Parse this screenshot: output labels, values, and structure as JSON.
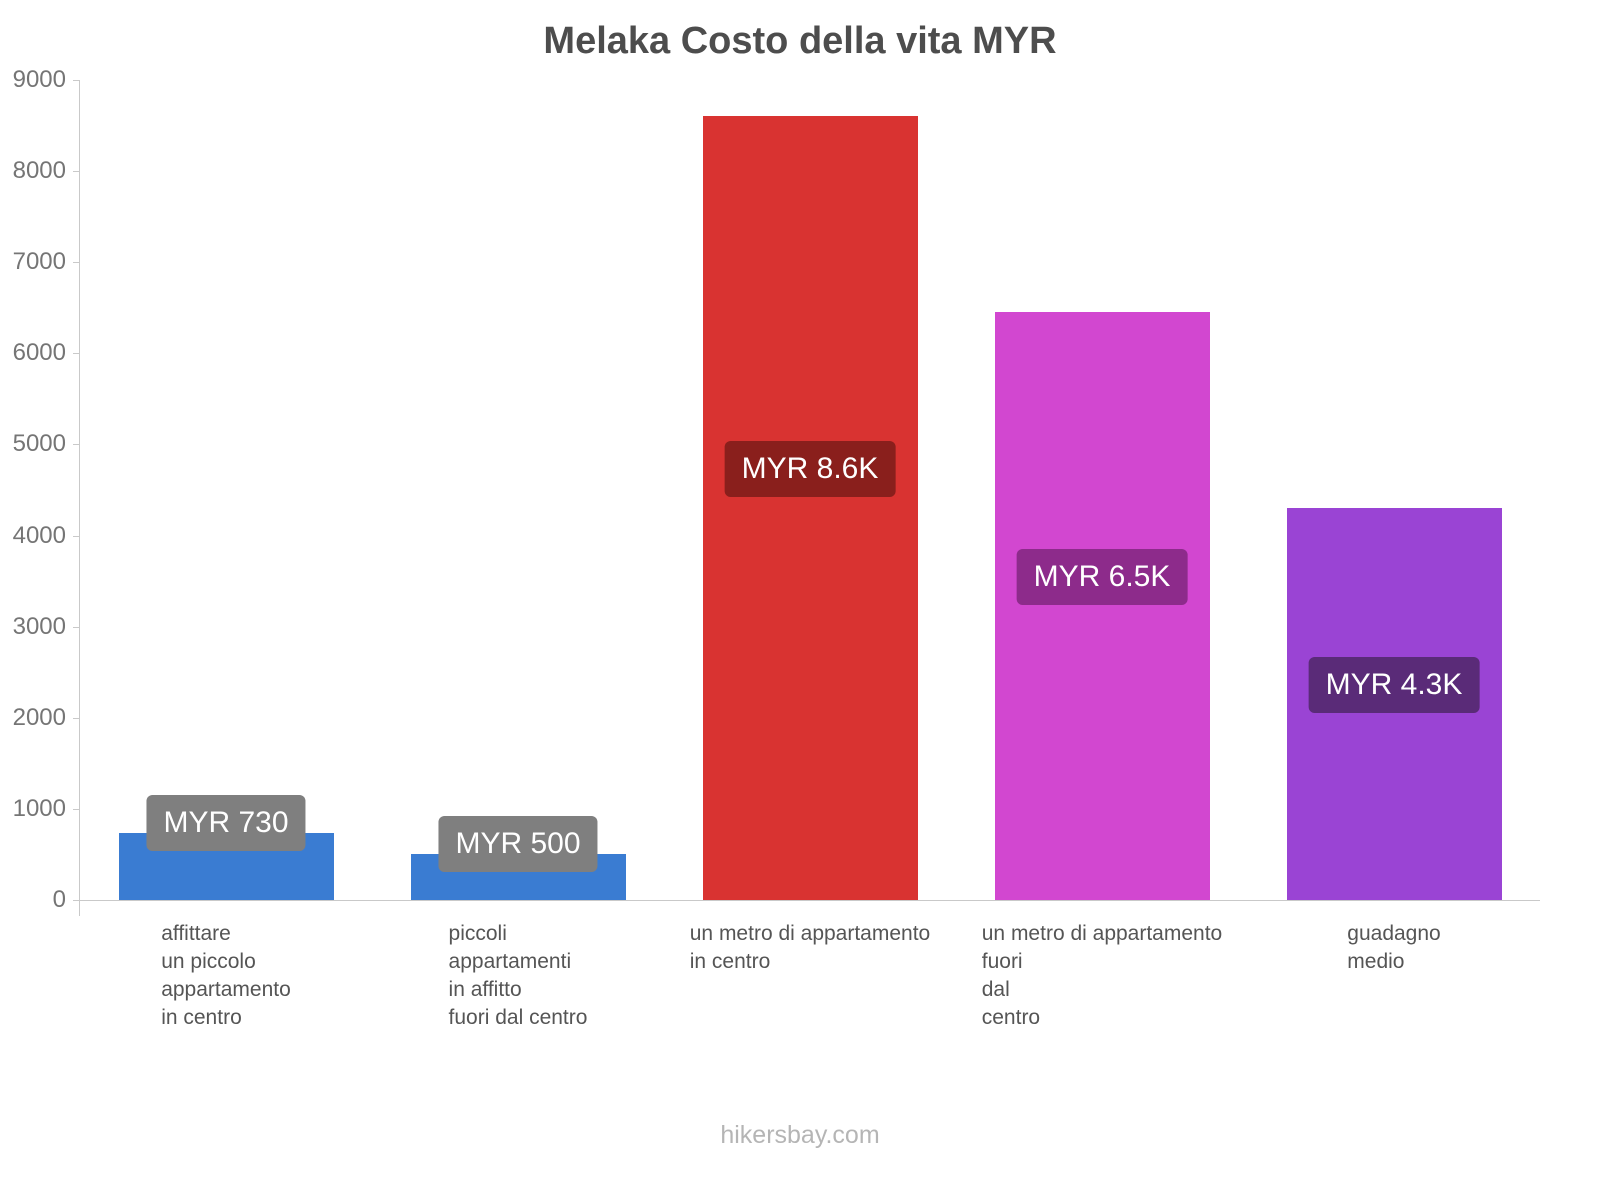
{
  "title": "Melaka Costo della vita MYR",
  "footer": "hikersbay.com",
  "chart_data": {
    "type": "bar",
    "title": "Melaka Costo della vita MYR",
    "xlabel": "",
    "ylabel": "",
    "ylim": [
      0,
      9000
    ],
    "yticks": [
      0,
      1000,
      2000,
      3000,
      4000,
      5000,
      6000,
      7000,
      8000,
      9000
    ],
    "grid": false,
    "legend": false,
    "currency": "MYR",
    "categories": [
      [
        "affittare",
        "un piccolo",
        "appartamento",
        "in centro"
      ],
      [
        "piccoli",
        "appartamenti",
        "in affitto",
        "fuori dal centro"
      ],
      [
        "un metro di appartamento",
        "in centro"
      ],
      [
        "un metro di appartamento",
        "fuori",
        "dal",
        "centro"
      ],
      [
        "guadagno",
        "medio"
      ]
    ],
    "values": [
      730,
      500,
      8600,
      6450,
      4300
    ],
    "value_labels": [
      "MYR 730",
      "MYR 500",
      "MYR 8.6K",
      "MYR 6.5K",
      "MYR 4.3K"
    ],
    "colors": [
      "#3a7cd2",
      "#3a7cd2",
      "#d93331",
      "#d247d0",
      "#9a44d4"
    ],
    "label_bg_colors": [
      "#7f7f7f",
      "#7f7f7f",
      "#8a1f1c",
      "#8d2b8b",
      "#5a2b78"
    ]
  }
}
